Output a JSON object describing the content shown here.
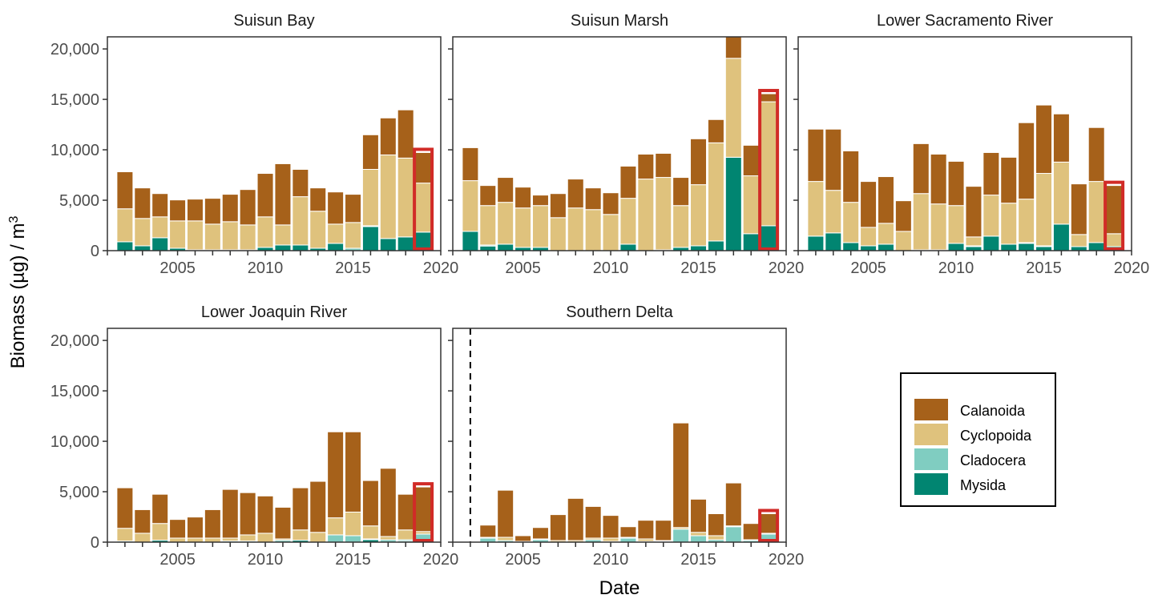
{
  "chart_data": {
    "type": "bar",
    "stacked": true,
    "title": "",
    "xlabel": "Date",
    "ylabel": "Biomass (µg) / m",
    "ylabel_superscript": "3",
    "ylim": [
      0,
      21200
    ],
    "xlim": [
      2001,
      2020
    ],
    "yticks": [
      0,
      5000,
      10000,
      15000,
      20000
    ],
    "ytick_labels": [
      "0",
      "5,000",
      "10,000",
      "15,000",
      "20,000"
    ],
    "xticks": [
      2005,
      2010,
      2015,
      2020
    ],
    "xtick_labels": [
      "2005",
      "2010",
      "2015",
      "2020"
    ],
    "grid": false,
    "legend_placement": "bottom-right",
    "highlight_year": 2019,
    "highlight_color": "#D12B27",
    "series_order": [
      "Mysida",
      "Cladocera",
      "Cyclopoida",
      "Calanoida"
    ],
    "legend": [
      {
        "name": "Calanoida",
        "color": "#A6611A"
      },
      {
        "name": "Cyclopoida",
        "color": "#DFC27D"
      },
      {
        "name": "Cladocera",
        "color": "#80CDC1"
      },
      {
        "name": "Mysida",
        "color": "#018571"
      }
    ],
    "years": [
      2002,
      2003,
      2004,
      2005,
      2006,
      2007,
      2008,
      2009,
      2010,
      2011,
      2012,
      2013,
      2014,
      2015,
      2016,
      2017,
      2018,
      2019
    ],
    "panels": [
      {
        "title": "Suisun Bay",
        "dashed_line_year": null,
        "series": {
          "Mysida": [
            880,
            480,
            1280,
            240,
            80,
            80,
            80,
            80,
            320,
            560,
            560,
            240,
            720,
            0,
            2390,
            1200,
            1360,
            1840
          ],
          "Cladocera": [
            0,
            0,
            0,
            0,
            0,
            0,
            0,
            0,
            0,
            0,
            0,
            0,
            0,
            240,
            80,
            0,
            0,
            0
          ],
          "Cyclopoida": [
            3270,
            2710,
            2070,
            2710,
            2870,
            2550,
            2790,
            2470,
            3030,
            1990,
            4790,
            3670,
            1910,
            2550,
            5590,
            8290,
            7820,
            4860
          ],
          "Calanoida": [
            3670,
            3030,
            2310,
            2080,
            2160,
            2560,
            2720,
            3510,
            4310,
            6070,
            2710,
            2310,
            3190,
            2800,
            3430,
            3670,
            4780,
            3030
          ]
        }
      },
      {
        "title": "Suisun Marsh",
        "dashed_line_year": null,
        "series": {
          "Mysida": [
            1910,
            460,
            640,
            320,
            320,
            0,
            0,
            0,
            0,
            640,
            0,
            80,
            320,
            480,
            960,
            9260,
            1680,
            2470
          ],
          "Cladocera": [
            0,
            100,
            0,
            0,
            0,
            0,
            0,
            0,
            0,
            0,
            0,
            0,
            0,
            0,
            0,
            0,
            0,
            0
          ],
          "Cyclopoida": [
            5030,
            3910,
            4150,
            3910,
            4150,
            3270,
            4230,
            4070,
            3590,
            4550,
            7100,
            7180,
            4150,
            6060,
            9730,
            9810,
            5740,
            12290
          ],
          "Calanoida": [
            3270,
            1990,
            2470,
            2070,
            1040,
            2390,
            2870,
            2150,
            2150,
            3190,
            2470,
            2390,
            2790,
            4550,
            2310,
            2130,
            3030,
            800
          ]
        }
      },
      {
        "title": "Lower Sacramento River",
        "dashed_line_year": null,
        "series": {
          "Mysida": [
            1440,
            1760,
            800,
            480,
            640,
            0,
            80,
            0,
            720,
            400,
            1440,
            640,
            720,
            400,
            2630,
            400,
            800,
            400
          ],
          "Cladocera": [
            0,
            0,
            0,
            0,
            0,
            0,
            0,
            80,
            0,
            80,
            0,
            0,
            80,
            80,
            0,
            0,
            0,
            0
          ],
          "Cyclopoida": [
            5420,
            4220,
            3990,
            1830,
            2070,
            1910,
            5580,
            4550,
            3750,
            880,
            4070,
            4070,
            4310,
            7180,
            6150,
            1200,
            6060,
            1280
          ],
          "Calanoida": [
            5190,
            6070,
            5100,
            4550,
            4630,
            3040,
            4950,
            4940,
            4390,
            5020,
            4220,
            4550,
            7580,
            6780,
            4780,
            5020,
            5350,
            4780
          ]
        }
      },
      {
        "title": "Lower Joaquin River",
        "dashed_line_year": null,
        "series": {
          "Mysida": [
            0,
            0,
            190,
            0,
            0,
            0,
            0,
            0,
            0,
            0,
            190,
            0,
            0,
            0,
            240,
            0,
            110,
            110
          ],
          "Cladocera": [
            110,
            0,
            0,
            0,
            0,
            0,
            110,
            110,
            0,
            190,
            0,
            0,
            720,
            640,
            80,
            240,
            130,
            690
          ],
          "Cyclopoida": [
            1260,
            880,
            1660,
            400,
            400,
            400,
            290,
            610,
            880,
            130,
            1020,
            970,
            1690,
            2340,
            1290,
            320,
            970,
            250
          ],
          "Calanoida": [
            4020,
            2340,
            2900,
            1850,
            2090,
            2820,
            4830,
            4190,
            3700,
            3140,
            4180,
            5060,
            8530,
            7960,
            4500,
            6760,
            3540,
            4420
          ]
        }
      },
      {
        "title": "Southern Delta",
        "dashed_line_year": 2002,
        "series": {
          "Mysida": [
            null,
            0,
            0,
            0,
            0,
            0,
            0,
            0,
            0,
            0,
            0,
            0,
            0,
            0,
            0,
            0,
            0,
            0
          ],
          "Cladocera": [
            null,
            400,
            160,
            0,
            240,
            0,
            0,
            240,
            80,
            400,
            80,
            80,
            1290,
            640,
            240,
            1530,
            160,
            800
          ],
          "Cyclopoida": [
            null,
            80,
            320,
            80,
            80,
            160,
            160,
            160,
            320,
            80,
            240,
            80,
            160,
            330,
            400,
            80,
            80,
            80
          ],
          "Calanoida": [
            null,
            1210,
            4670,
            560,
            1130,
            2570,
            4180,
            3140,
            2250,
            1050,
            1850,
            2010,
            10370,
            3290,
            2180,
            4260,
            1610,
            1940
          ]
        }
      }
    ]
  }
}
